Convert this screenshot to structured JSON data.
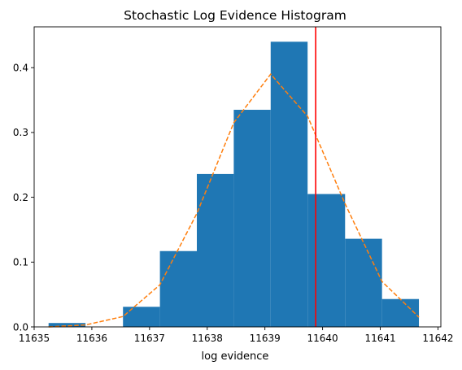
{
  "chart_data": {
    "type": "bar",
    "title": "Stochastic Log Evidence Histogram",
    "xlabel": "log evidence",
    "ylabel": "",
    "xlim": [
      11635.0,
      11642.05
    ],
    "ylim": [
      0,
      0.463
    ],
    "grid": false,
    "legend": "none",
    "x_ticks": [
      11635,
      11636,
      11637,
      11638,
      11639,
      11640,
      11641,
      11642
    ],
    "y_ticks": [
      0.0,
      0.1,
      0.2,
      0.3,
      0.4
    ],
    "bins": {
      "edges": [
        11635.25,
        11635.89,
        11636.54,
        11637.18,
        11637.82,
        11638.46,
        11639.1,
        11639.74,
        11640.39,
        11641.03,
        11641.67
      ],
      "values": [
        0.006,
        0.0,
        0.031,
        0.117,
        0.236,
        0.335,
        0.44,
        0.205,
        0.136,
        0.043
      ],
      "color": "#1f77b4"
    },
    "density_curve": {
      "x": [
        11635.25,
        11635.89,
        11636.54,
        11637.18,
        11637.82,
        11638.46,
        11639.1,
        11639.74,
        11640.39,
        11641.03,
        11641.67
      ],
      "y": [
        0.0,
        0.003,
        0.016,
        0.065,
        0.175,
        0.315,
        0.39,
        0.325,
        0.19,
        0.07,
        0.015
      ],
      "color": "#ff7f0e",
      "style": "dashed"
    },
    "reference_line": {
      "x": 11639.88,
      "color": "#ff0000"
    }
  }
}
